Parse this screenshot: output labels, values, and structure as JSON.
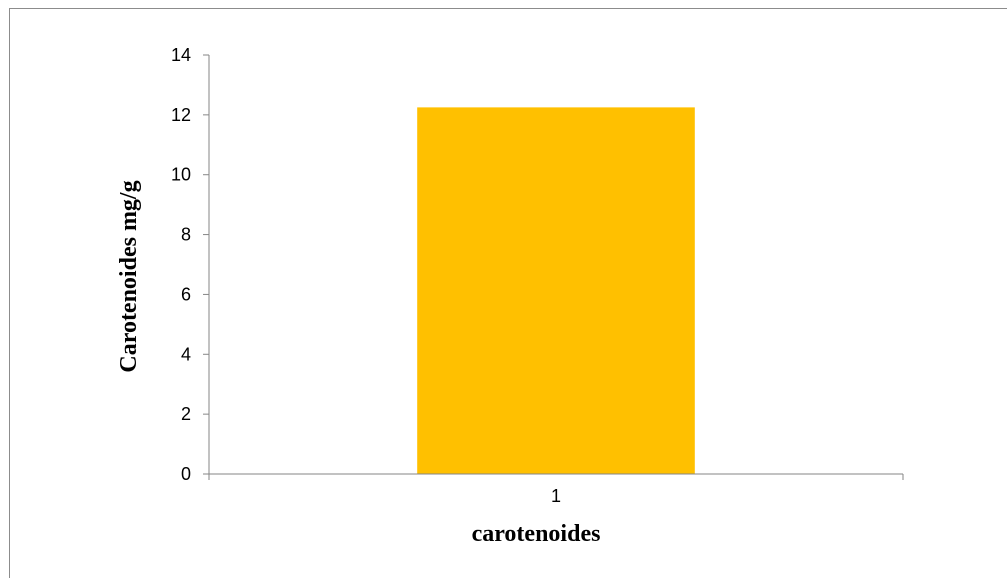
{
  "chart_data": {
    "type": "bar",
    "categories": [
      "1"
    ],
    "series": [
      {
        "values": [
          12.25
        ]
      }
    ],
    "title": "",
    "xlabel": "carotenoides",
    "ylabel": "Carotenoides mg/g",
    "ylim": [
      0,
      14
    ],
    "yticks": [
      0,
      2,
      4,
      6,
      8,
      10,
      12,
      14
    ],
    "grid": false,
    "legend": "none",
    "colors": {
      "bar": "#FFC000",
      "axis": "#868686",
      "frame": "#8c8c8c"
    }
  }
}
